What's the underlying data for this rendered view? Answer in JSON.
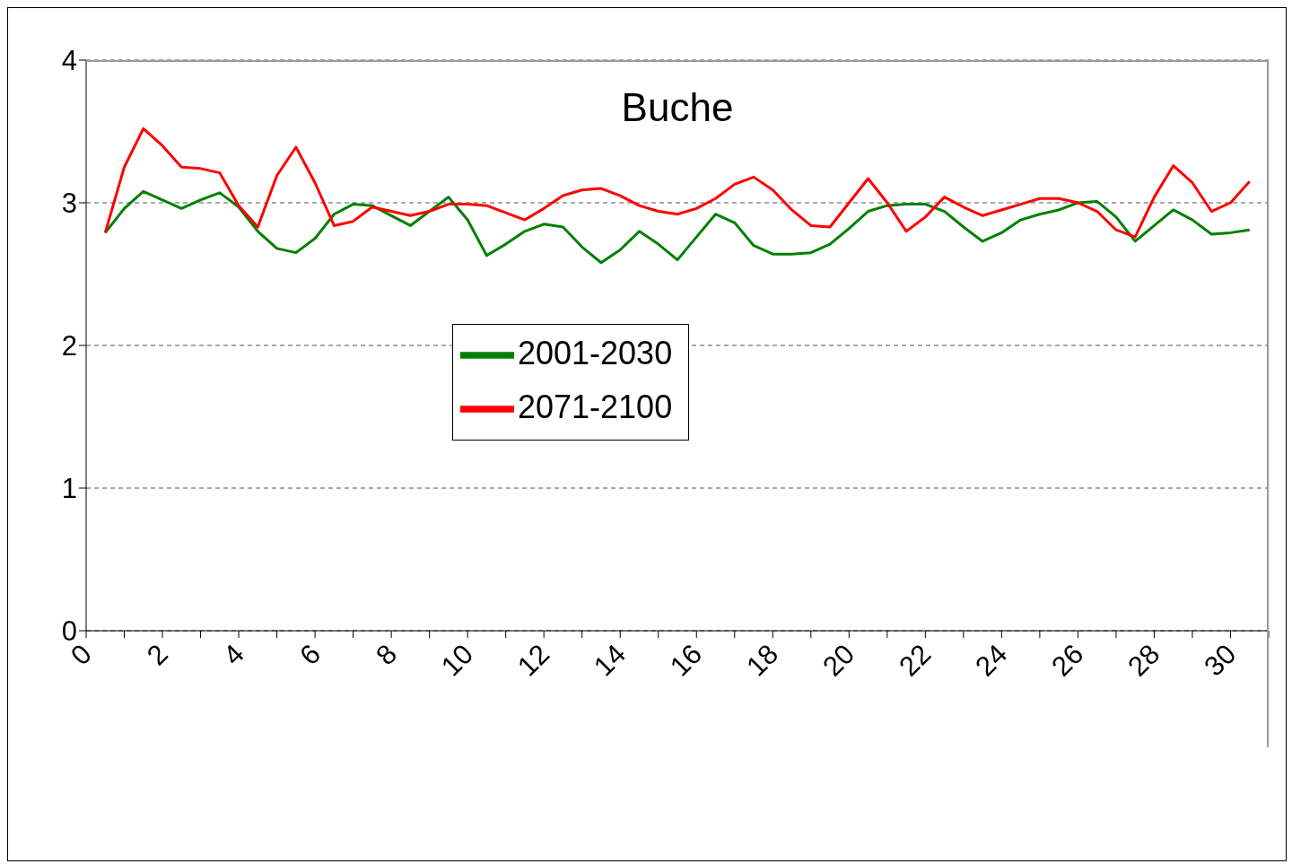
{
  "chart_data": {
    "type": "line",
    "title": "Buche",
    "x": [
      0.5,
      1,
      1.5,
      2,
      2.5,
      3,
      3.5,
      4,
      4.5,
      5,
      5.5,
      6,
      6.5,
      7,
      7.5,
      8,
      8.5,
      9,
      9.5,
      10,
      10.5,
      11,
      11.5,
      12,
      12.5,
      13,
      13.5,
      14,
      14.5,
      15,
      15.5,
      16,
      16.5,
      17,
      17.5,
      18,
      18.5,
      19,
      19.5,
      20,
      20.5,
      21,
      21.5,
      22,
      22.5,
      23,
      23.5,
      24,
      24.5,
      25,
      25.5,
      26,
      26.5,
      27,
      27.5,
      28,
      28.5,
      29,
      29.5,
      30,
      30.5
    ],
    "series": [
      {
        "name": "2001-2030",
        "color": "#008000",
        "values": [
          2.79,
          2.96,
          3.08,
          3.02,
          2.96,
          3.02,
          3.07,
          2.97,
          2.8,
          2.68,
          2.65,
          2.75,
          2.92,
          2.99,
          2.98,
          2.91,
          2.84,
          2.94,
          3.04,
          2.88,
          2.63,
          2.71,
          2.8,
          2.85,
          2.83,
          2.69,
          2.58,
          2.67,
          2.8,
          2.71,
          2.6,
          2.76,
          2.92,
          2.86,
          2.7,
          2.64,
          2.64,
          2.65,
          2.71,
          2.82,
          2.94,
          2.98,
          2.99,
          2.99,
          2.94,
          2.83,
          2.73,
          2.79,
          2.88,
          2.92,
          2.95,
          3.0,
          3.01,
          2.9,
          2.73,
          2.84,
          2.95,
          2.88,
          2.78,
          2.79,
          2.81
        ]
      },
      {
        "name": "2071-2100",
        "color": "#ff0000",
        "values": [
          2.79,
          3.25,
          3.52,
          3.4,
          3.25,
          3.24,
          3.21,
          2.98,
          2.83,
          3.19,
          3.39,
          3.14,
          2.84,
          2.87,
          2.97,
          2.94,
          2.91,
          2.94,
          2.99,
          2.99,
          2.98,
          2.93,
          2.88,
          2.96,
          3.05,
          3.09,
          3.1,
          3.05,
          2.98,
          2.94,
          2.92,
          2.96,
          3.03,
          3.13,
          3.18,
          3.09,
          2.95,
          2.84,
          2.83,
          3.0,
          3.17,
          3.0,
          2.8,
          2.9,
          3.04,
          2.97,
          2.91,
          2.95,
          2.99,
          3.03,
          3.03,
          3.0,
          2.94,
          2.81,
          2.76,
          3.04,
          3.26,
          3.14,
          2.94,
          3.0,
          3.15
        ]
      }
    ],
    "xlim": [
      0,
      31
    ],
    "xticks": [
      0,
      {
        "value": 1,
        "label": null
      },
      2,
      {
        "value": 3,
        "label": null
      },
      4,
      {
        "value": 5,
        "label": null
      },
      6,
      {
        "value": 7,
        "label": null
      },
      8,
      {
        "value": 9,
        "label": null
      },
      10,
      {
        "value": 11,
        "label": null
      },
      12,
      {
        "value": 13,
        "label": null
      },
      14,
      {
        "value": 15,
        "label": null
      },
      16,
      {
        "value": 17,
        "label": null
      },
      18,
      {
        "value": 19,
        "label": null
      },
      20,
      {
        "value": 21,
        "label": null
      },
      22,
      {
        "value": 23,
        "label": null
      },
      24,
      {
        "value": 25,
        "label": null
      },
      26,
      {
        "value": 27,
        "label": null
      },
      28,
      {
        "value": 29,
        "label": null
      },
      30,
      {
        "value": 31,
        "label": null
      }
    ],
    "ylim": [
      0,
      4
    ],
    "yticks": [
      0,
      1,
      2,
      3,
      4
    ],
    "grid": "y",
    "legend": "center",
    "marker": "none",
    "line_style": "solid"
  }
}
